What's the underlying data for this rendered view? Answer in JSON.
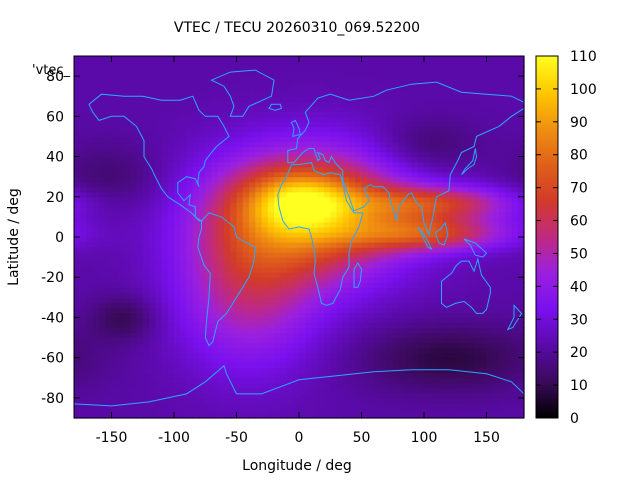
{
  "chart_data": {
    "type": "heatmap",
    "title": "VTEC / TECU 20260310_069.52200",
    "xlabel": "Longitude / deg",
    "ylabel": "Latitude / deg",
    "key_label": "'vtec_",
    "xlim": [
      -180,
      180
    ],
    "ylim": [
      -90,
      90
    ],
    "x_ticks": [
      -150,
      -100,
      -50,
      0,
      50,
      100,
      150
    ],
    "y_ticks": [
      -80,
      -60,
      -40,
      -20,
      0,
      20,
      40,
      60,
      80
    ],
    "colorbar": {
      "range": [
        0,
        110
      ],
      "ticks": [
        0,
        10,
        20,
        30,
        40,
        50,
        60,
        70,
        80,
        90,
        100,
        110
      ]
    },
    "features": [
      {
        "type": "gaussian",
        "lon": 10,
        "lat": 12,
        "sl": 55,
        "sp": 22,
        "amp": 62
      },
      {
        "type": "gaussian",
        "lon": 0,
        "lat": 18,
        "sl": 30,
        "sp": 10,
        "amp": 30
      },
      {
        "type": "gaussian",
        "lon": 105,
        "lat": 2,
        "sl": 45,
        "sp": 6,
        "amp": 40
      },
      {
        "type": "gaussian",
        "lon": 110,
        "lat": 17,
        "sl": 45,
        "sp": 6,
        "amp": 38
      },
      {
        "type": "gaussian",
        "lon": -40,
        "lat": -25,
        "sl": 40,
        "sp": 28,
        "amp": 30
      },
      {
        "type": "gaussian",
        "lon": -140,
        "lat": -40,
        "sl": 18,
        "sp": 8,
        "amp": -12
      },
      {
        "type": "gaussian",
        "lon": 120,
        "lat": -60,
        "sl": 50,
        "sp": 12,
        "amp": -14
      },
      {
        "type": "gaussian",
        "lon": 100,
        "lat": 45,
        "sl": 30,
        "sp": 10,
        "amp": -10
      },
      {
        "type": "gaussian",
        "lon": -150,
        "lat": 30,
        "sl": 30,
        "sp": 12,
        "amp": -8
      }
    ],
    "base_value": 22,
    "coastline_color": "#2aa8ff",
    "colormap": [
      "#000000",
      "#3a0a5a",
      "#5a0aa8",
      "#7a10ee",
      "#9a20e0",
      "#c02a80",
      "#d23a2a",
      "#e0601a",
      "#f09010",
      "#ffc800",
      "#ffff20"
    ],
    "continents": [
      {
        "name": "North America",
        "points": [
          [
            -168,
            66
          ],
          [
            -158,
            71
          ],
          [
            -140,
            70
          ],
          [
            -125,
            70
          ],
          [
            -110,
            68
          ],
          [
            -95,
            68
          ],
          [
            -85,
            70
          ],
          [
            -80,
            63
          ],
          [
            -75,
            60
          ],
          [
            -65,
            60
          ],
          [
            -60,
            55
          ],
          [
            -56,
            50
          ],
          [
            -66,
            45
          ],
          [
            -70,
            42
          ],
          [
            -75,
            38
          ],
          [
            -76,
            35
          ],
          [
            -80,
            32
          ],
          [
            -81,
            27
          ],
          [
            -80,
            25
          ],
          [
            -83,
            29
          ],
          [
            -90,
            30
          ],
          [
            -97,
            27
          ],
          [
            -97,
            22
          ],
          [
            -92,
            18
          ],
          [
            -87,
            21
          ],
          [
            -88,
            16
          ],
          [
            -83,
            15
          ],
          [
            -83,
            10
          ],
          [
            -78,
            8
          ],
          [
            -80,
            8
          ],
          [
            -86,
            12
          ],
          [
            -95,
            16
          ],
          [
            -105,
            20
          ],
          [
            -110,
            24
          ],
          [
            -115,
            30
          ],
          [
            -118,
            34
          ],
          [
            -124,
            40
          ],
          [
            -124,
            48
          ],
          [
            -130,
            55
          ],
          [
            -140,
            60
          ],
          [
            -150,
            60
          ],
          [
            -160,
            58
          ],
          [
            -165,
            62
          ]
        ]
      },
      {
        "name": "Greenland",
        "points": [
          [
            -55,
            60
          ],
          [
            -45,
            60
          ],
          [
            -40,
            65
          ],
          [
            -22,
            70
          ],
          [
            -20,
            78
          ],
          [
            -35,
            83
          ],
          [
            -55,
            82
          ],
          [
            -70,
            78
          ],
          [
            -60,
            75
          ],
          [
            -55,
            70
          ],
          [
            -52,
            65
          ]
        ]
      },
      {
        "name": "South America",
        "points": [
          [
            -78,
            8
          ],
          [
            -72,
            12
          ],
          [
            -62,
            10
          ],
          [
            -52,
            5
          ],
          [
            -50,
            0
          ],
          [
            -45,
            -2
          ],
          [
            -35,
            -5
          ],
          [
            -36,
            -12
          ],
          [
            -40,
            -20
          ],
          [
            -48,
            -28
          ],
          [
            -55,
            -35
          ],
          [
            -58,
            -38
          ],
          [
            -65,
            -42
          ],
          [
            -67,
            -47
          ],
          [
            -69,
            -52
          ],
          [
            -72,
            -54
          ],
          [
            -75,
            -50
          ],
          [
            -74,
            -42
          ],
          [
            -72,
            -30
          ],
          [
            -71,
            -18
          ],
          [
            -76,
            -14
          ],
          [
            -81,
            -5
          ],
          [
            -80,
            0
          ],
          [
            -78,
            4
          ]
        ]
      },
      {
        "name": "Africa",
        "points": [
          [
            -17,
            21
          ],
          [
            -16,
            15
          ],
          [
            -13,
            8
          ],
          [
            -8,
            4
          ],
          [
            0,
            5
          ],
          [
            8,
            4
          ],
          [
            10,
            0
          ],
          [
            12,
            -6
          ],
          [
            13,
            -12
          ],
          [
            12,
            -18
          ],
          [
            15,
            -25
          ],
          [
            18,
            -33
          ],
          [
            22,
            -34
          ],
          [
            27,
            -33
          ],
          [
            33,
            -26
          ],
          [
            35,
            -20
          ],
          [
            40,
            -15
          ],
          [
            40,
            -8
          ],
          [
            42,
            -2
          ],
          [
            48,
            5
          ],
          [
            51,
            12
          ],
          [
            44,
            12
          ],
          [
            38,
            18
          ],
          [
            35,
            27
          ],
          [
            33,
            31
          ],
          [
            25,
            32
          ],
          [
            20,
            31
          ],
          [
            12,
            33
          ],
          [
            10,
            37
          ],
          [
            0,
            36
          ],
          [
            -6,
            36
          ],
          [
            -10,
            30
          ],
          [
            -14,
            26
          ]
        ]
      },
      {
        "name": "Eurasia",
        "points": [
          [
            -9,
            37
          ],
          [
            -9,
            43
          ],
          [
            -2,
            44
          ],
          [
            -1,
            49
          ],
          [
            5,
            53
          ],
          [
            8,
            57
          ],
          [
            5,
            62
          ],
          [
            15,
            69
          ],
          [
            25,
            71
          ],
          [
            40,
            68
          ],
          [
            60,
            70
          ],
          [
            70,
            73
          ],
          [
            90,
            76
          ],
          [
            110,
            77
          ],
          [
            130,
            72
          ],
          [
            150,
            71
          ],
          [
            170,
            70
          ],
          [
            180,
            67
          ],
          [
            180,
            64
          ],
          [
            170,
            60
          ],
          [
            160,
            55
          ],
          [
            142,
            50
          ],
          [
            140,
            45
          ],
          [
            130,
            42
          ],
          [
            127,
            38
          ],
          [
            121,
            31
          ],
          [
            120,
            23
          ],
          [
            110,
            20
          ],
          [
            107,
            10
          ],
          [
            104,
            1
          ],
          [
            100,
            7
          ],
          [
            98,
            15
          ],
          [
            94,
            17
          ],
          [
            90,
            22
          ],
          [
            87,
            21
          ],
          [
            80,
            15
          ],
          [
            78,
            8
          ],
          [
            73,
            18
          ],
          [
            72,
            22
          ],
          [
            67,
            25
          ],
          [
            60,
            25
          ],
          [
            57,
            26
          ],
          [
            52,
            24
          ],
          [
            56,
            18
          ],
          [
            52,
            15
          ],
          [
            44,
            13
          ],
          [
            40,
            20
          ],
          [
            35,
            28
          ],
          [
            35,
            33
          ],
          [
            30,
            36
          ],
          [
            26,
            40
          ],
          [
            24,
            37
          ],
          [
            21,
            38
          ],
          [
            19,
            41
          ],
          [
            15,
            42
          ],
          [
            17,
            39
          ],
          [
            15,
            38
          ],
          [
            12,
            44
          ],
          [
            8,
            44
          ],
          [
            3,
            42
          ],
          [
            -4,
            37
          ]
        ]
      },
      {
        "name": "Australia",
        "points": [
          [
            114,
            -22
          ],
          [
            114,
            -33
          ],
          [
            118,
            -35
          ],
          [
            125,
            -33
          ],
          [
            132,
            -32
          ],
          [
            138,
            -35
          ],
          [
            142,
            -38
          ],
          [
            147,
            -38
          ],
          [
            150,
            -36
          ],
          [
            153,
            -28
          ],
          [
            153,
            -25
          ],
          [
            146,
            -19
          ],
          [
            143,
            -11
          ],
          [
            140,
            -17
          ],
          [
            136,
            -12
          ],
          [
            130,
            -12
          ],
          [
            126,
            -14
          ],
          [
            122,
            -18
          ]
        ]
      },
      {
        "name": "Antarctica",
        "points": [
          [
            -180,
            -83
          ],
          [
            -150,
            -84
          ],
          [
            -120,
            -82
          ],
          [
            -90,
            -78
          ],
          [
            -75,
            -72
          ],
          [
            -60,
            -64
          ],
          [
            -58,
            -68
          ],
          [
            -50,
            -78
          ],
          [
            -30,
            -78
          ],
          [
            0,
            -71
          ],
          [
            30,
            -69
          ],
          [
            60,
            -67
          ],
          [
            90,
            -66
          ],
          [
            120,
            -66
          ],
          [
            150,
            -68
          ],
          [
            170,
            -72
          ],
          [
            180,
            -78
          ],
          [
            180,
            -90
          ],
          [
            -180,
            -90
          ]
        ]
      },
      {
        "name": "Madagascar",
        "points": [
          [
            44,
            -25
          ],
          [
            44,
            -16
          ],
          [
            47,
            -13
          ],
          [
            50,
            -16
          ],
          [
            49,
            -22
          ],
          [
            47,
            -25
          ]
        ]
      },
      {
        "name": "Borneo",
        "points": [
          [
            109,
            2
          ],
          [
            112,
            -3
          ],
          [
            116,
            -4
          ],
          [
            119,
            1
          ],
          [
            117,
            7
          ],
          [
            113,
            4
          ]
        ]
      },
      {
        "name": "Sumatra",
        "points": [
          [
            95,
            5
          ],
          [
            98,
            3
          ],
          [
            103,
            -2
          ],
          [
            106,
            -6
          ],
          [
            103,
            -5
          ],
          [
            99,
            0
          ],
          [
            96,
            4
          ]
        ]
      },
      {
        "name": "Japan",
        "points": [
          [
            130,
            31
          ],
          [
            135,
            34
          ],
          [
            140,
            36
          ],
          [
            142,
            40
          ],
          [
            141,
            44
          ],
          [
            139,
            38
          ],
          [
            133,
            34
          ]
        ]
      },
      {
        "name": "UK",
        "points": [
          [
            -5,
            50
          ],
          [
            1,
            51
          ],
          [
            0,
            54
          ],
          [
            -3,
            58
          ],
          [
            -6,
            57
          ],
          [
            -4,
            54
          ]
        ]
      },
      {
        "name": "New Guinea",
        "points": [
          [
            132,
            -1
          ],
          [
            141,
            -3
          ],
          [
            150,
            -8
          ],
          [
            147,
            -10
          ],
          [
            141,
            -9
          ],
          [
            137,
            -4
          ]
        ]
      },
      {
        "name": "New Zealand",
        "points": [
          [
            172,
            -34
          ],
          [
            178,
            -38
          ],
          [
            175,
            -41
          ],
          [
            171,
            -45
          ],
          [
            167,
            -46
          ],
          [
            172,
            -40
          ]
        ]
      },
      {
        "name": "Iceland",
        "points": [
          [
            -24,
            64
          ],
          [
            -22,
            66
          ],
          [
            -15,
            66
          ],
          [
            -14,
            64
          ],
          [
            -19,
            63
          ]
        ]
      }
    ]
  }
}
